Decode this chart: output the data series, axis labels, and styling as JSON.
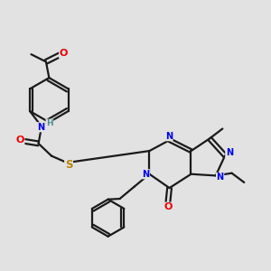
{
  "bg_color": "#e2e2e2",
  "bond_color": "#1a1a1a",
  "bond_width": 1.6,
  "atom_colors": {
    "C": "#1a1a1a",
    "N": "#0000ee",
    "O": "#ee0000",
    "S": "#b8860b",
    "H": "#4e8f8f"
  },
  "font_size": 7.0
}
